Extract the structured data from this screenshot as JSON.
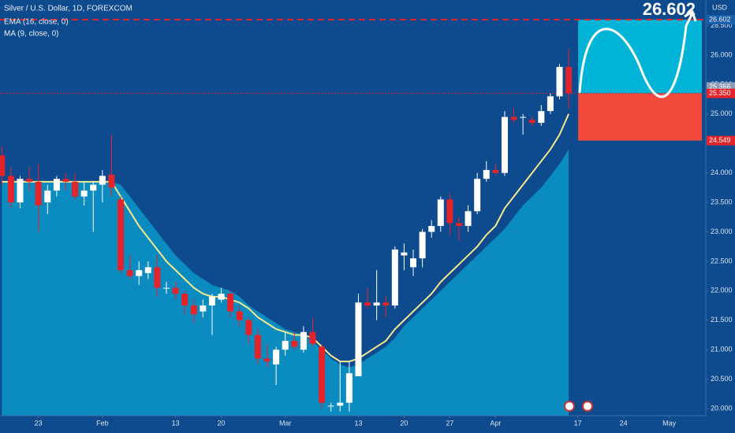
{
  "chart_data": {
    "type": "candlestick",
    "title": "Silver / U.S. Dollar, 1D, FOREXCOM",
    "indicators": [
      "EMA (16, close, 0)",
      "MA (9, close, 0)"
    ],
    "currency": "USD",
    "open": [
      24.3,
      23.95,
      23.5,
      23.9,
      23.85,
      23.5,
      23.7,
      23.9,
      23.85,
      23.6,
      23.7,
      23.8,
      23.97,
      23.55,
      22.35,
      22.25,
      22.3,
      22.4,
      22.05,
      22.05,
      21.95,
      21.75,
      21.65,
      21.75,
      21.85,
      21.95,
      21.65,
      21.5,
      21.25,
      20.85,
      20.75,
      21.0,
      21.15,
      21.0,
      21.3,
      21.05,
      20.05,
      20.05,
      20.1,
      20.55,
      21.8,
      21.75,
      21.8,
      21.75,
      22.6,
      22.4,
      22.55,
      23.0,
      23.1,
      23.55,
      23.15,
      23.1,
      23.35,
      23.9,
      24.05,
      24.0,
      24.95,
      24.95,
      24.9,
      24.85,
      25.05,
      25.3,
      25.8
    ],
    "high": [
      24.45,
      24.1,
      23.95,
      24.1,
      24.15,
      23.8,
      23.95,
      24.0,
      24.0,
      23.85,
      23.85,
      24.05,
      24.65,
      23.6,
      22.6,
      22.5,
      22.5,
      22.6,
      22.15,
      22.15,
      22.0,
      21.85,
      21.85,
      21.95,
      22.05,
      22.0,
      21.75,
      21.55,
      21.35,
      21.1,
      21.05,
      21.3,
      21.3,
      21.4,
      21.55,
      21.1,
      20.1,
      20.8,
      20.8,
      21.95,
      22.05,
      22.35,
      21.9,
      22.75,
      22.8,
      22.7,
      23.05,
      23.2,
      23.6,
      23.65,
      23.25,
      23.45,
      24.0,
      24.2,
      24.15,
      25.05,
      25.1,
      25.0,
      24.95,
      25.15,
      25.35,
      25.85,
      26.1
    ],
    "low": [
      23.8,
      23.4,
      23.4,
      23.7,
      23.0,
      23.3,
      23.6,
      23.7,
      23.55,
      23.45,
      23.0,
      23.5,
      23.6,
      22.3,
      22.2,
      22.1,
      22.2,
      21.9,
      21.95,
      21.85,
      21.6,
      21.45,
      21.55,
      21.25,
      21.8,
      21.55,
      21.4,
      21.1,
      20.75,
      20.7,
      20.4,
      20.9,
      21.0,
      20.95,
      21.05,
      20.0,
      19.95,
      19.95,
      19.95,
      20.55,
      21.7,
      21.5,
      21.55,
      21.7,
      22.35,
      22.25,
      22.4,
      22.9,
      23.0,
      22.95,
      22.85,
      23.0,
      23.3,
      23.85,
      23.95,
      23.95,
      24.85,
      24.65,
      24.8,
      24.8,
      25.0,
      25.25,
      25.1
    ],
    "close": [
      23.95,
      23.5,
      23.9,
      23.85,
      23.45,
      23.7,
      23.9,
      23.85,
      23.6,
      23.7,
      23.8,
      23.95,
      23.75,
      22.35,
      22.25,
      22.35,
      22.4,
      22.05,
      22.05,
      21.95,
      21.75,
      21.6,
      21.75,
      21.9,
      21.95,
      21.65,
      21.5,
      21.25,
      20.85,
      20.8,
      21.0,
      21.15,
      21.05,
      21.3,
      21.1,
      20.1,
      20.05,
      20.1,
      20.6,
      21.8,
      21.75,
      21.8,
      21.75,
      22.7,
      22.65,
      22.55,
      23.0,
      23.1,
      23.55,
      23.15,
      23.1,
      23.35,
      23.9,
      24.05,
      24.0,
      24.95,
      24.9,
      24.95,
      24.85,
      25.05,
      25.3,
      25.8,
      25.35
    ],
    "ema": [
      23.85,
      23.85,
      23.85,
      23.85,
      23.85,
      23.85,
      23.85,
      23.85,
      23.85,
      23.85,
      23.85,
      23.85,
      23.85,
      23.6,
      23.35,
      23.1,
      22.9,
      22.7,
      22.5,
      22.35,
      22.2,
      22.05,
      21.95,
      21.9,
      21.9,
      21.85,
      21.8,
      21.7,
      21.55,
      21.45,
      21.35,
      21.3,
      21.25,
      21.25,
      21.2,
      21.05,
      20.9,
      20.8,
      20.8,
      20.85,
      20.95,
      21.05,
      21.15,
      21.35,
      21.5,
      21.65,
      21.8,
      21.95,
      22.15,
      22.3,
      22.45,
      22.6,
      22.75,
      22.95,
      23.1,
      23.4,
      23.6,
      23.8,
      24.0,
      24.2,
      24.4,
      24.65,
      25.0
    ],
    "ma": [
      23.85,
      23.85,
      23.85,
      23.85,
      23.85,
      23.85,
      23.85,
      23.85,
      23.85,
      23.85,
      23.85,
      23.85,
      23.85,
      23.8,
      23.6,
      23.4,
      23.2,
      23.0,
      22.8,
      22.6,
      22.45,
      22.3,
      22.2,
      22.1,
      22.05,
      22.0,
      21.9,
      21.75,
      21.65,
      21.55,
      21.45,
      21.35,
      21.3,
      21.25,
      21.15,
      21.0,
      20.85,
      20.75,
      20.7,
      20.75,
      20.85,
      20.95,
      21.05,
      21.2,
      21.4,
      21.55,
      21.7,
      21.85,
      22.0,
      22.15,
      22.3,
      22.45,
      22.6,
      22.75,
      22.9,
      23.05,
      23.25,
      23.45,
      23.6,
      23.75,
      23.95,
      24.15,
      24.4
    ],
    "up_color": "#ffffff",
    "down_color": "#e5232b",
    "ema_color": "#f5e98a",
    "ma_color": "#0a8cc0",
    "position": {
      "entry": {
        "value": 25.35,
        "label": "25.350"
      },
      "target": 26.602,
      "stop": 24.549
    },
    "last_price": 25.366,
    "xlim": [
      -0.2,
      77
    ],
    "xticks": [
      {
        "value": 4,
        "label": "23"
      },
      {
        "value": 11,
        "label": "Feb"
      },
      {
        "value": 19,
        "label": "13"
      },
      {
        "value": 24,
        "label": "20"
      },
      {
        "value": 31,
        "label": "Mar"
      },
      {
        "value": 39,
        "label": "13"
      },
      {
        "value": 44,
        "label": "20"
      },
      {
        "value": 49,
        "label": "27"
      },
      {
        "value": 54,
        "label": "Apr"
      },
      {
        "value": 63,
        "label": "17"
      },
      {
        "value": 68,
        "label": "24"
      },
      {
        "value": 73,
        "label": "May"
      }
    ],
    "ylim": [
      19.88,
      26.935
    ],
    "yticks": [
      {
        "value": 20,
        "label": "20.000"
      },
      {
        "value": 20.5,
        "label": "20.500"
      },
      {
        "value": 21,
        "label": "21.000"
      },
      {
        "value": 21.5,
        "label": "21.500"
      },
      {
        "value": 22,
        "label": "22.000"
      },
      {
        "value": 22.5,
        "label": "22.500"
      },
      {
        "value": 23,
        "label": "23.000"
      },
      {
        "value": 23.5,
        "label": "23.500"
      },
      {
        "value": 24,
        "label": "24.000"
      },
      {
        "value": 24.5,
        "label": "24.500"
      },
      {
        "value": 25,
        "label": "25.000"
      },
      {
        "value": 25.5,
        "label": "25.500"
      },
      {
        "value": 26,
        "label": "26.000"
      },
      {
        "value": 26.5,
        "label": "26.500"
      }
    ]
  }
}
